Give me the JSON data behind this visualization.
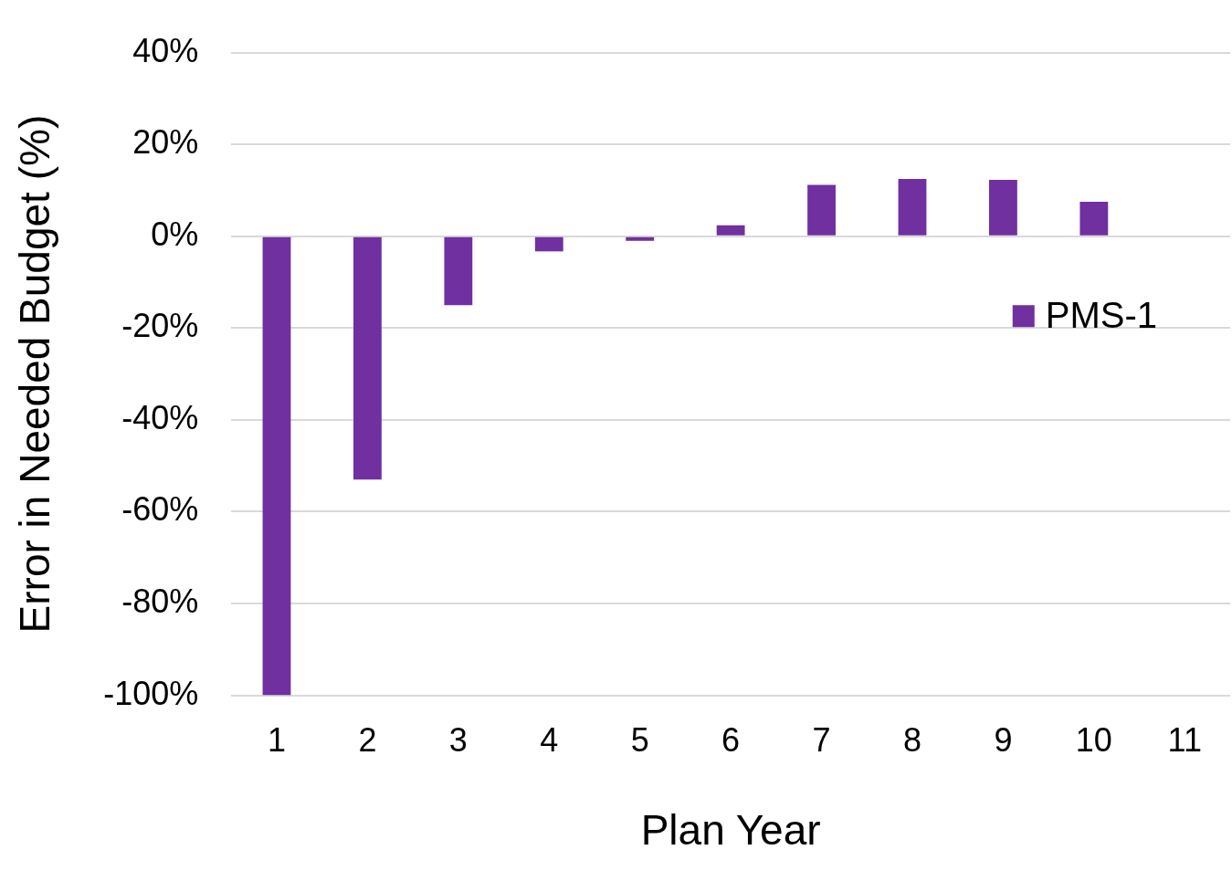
{
  "chart_data": {
    "type": "bar",
    "xlabel": "Plan Year",
    "ylabel": "Error in Needed Budget (%)",
    "categories": [
      "1",
      "2",
      "3",
      "4",
      "5",
      "6",
      "7",
      "8",
      "9",
      "10",
      "11"
    ],
    "series": [
      {
        "name": "PMS-1",
        "color": "#7030a0",
        "values": [
          -100,
          -53,
          -15,
          -3.3,
          -1,
          2.4,
          11.2,
          12.5,
          12.3,
          7.5,
          null
        ]
      }
    ],
    "ylim": [
      -100,
      40
    ],
    "yticks": [
      {
        "value": -100,
        "label": "-100%"
      },
      {
        "value": -80,
        "label": "-80%"
      },
      {
        "value": -60,
        "label": "-60%"
      },
      {
        "value": -40,
        "label": "-40%"
      },
      {
        "value": -20,
        "label": "-20%"
      },
      {
        "value": 0,
        "label": "0%"
      },
      {
        "value": 20,
        "label": "20%"
      },
      {
        "value": 40,
        "label": "40%"
      }
    ],
    "grid": "y",
    "legend": "right"
  }
}
